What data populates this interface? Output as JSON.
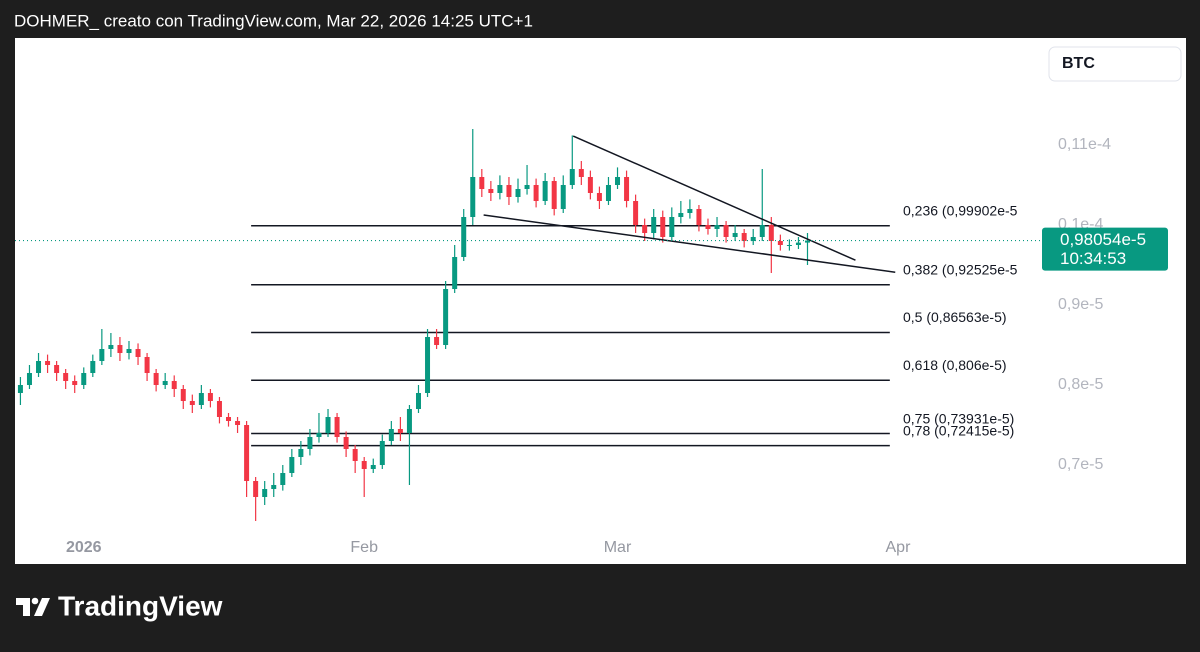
{
  "header": "DOHMER_ creato con TradingView.com, Mar 22, 2026 14:25 UTC+1",
  "footer": {
    "brand": "TradingView"
  },
  "chart_data": {
    "type": "candlestick",
    "symbol": "BTC",
    "up_color": "#089981",
    "down_color": "#f23645",
    "xlim": [
      -0.6,
      112.7
    ],
    "xticks": [
      {
        "value": 7,
        "label": "2026"
      },
      {
        "value": 38,
        "label": "Feb"
      },
      {
        "value": 66,
        "label": "Mar"
      },
      {
        "value": 97,
        "label": "Apr"
      }
    ],
    "ylim": [
      0.57875,
      1.23375
    ],
    "yticks": [
      {
        "value": 0.7,
        "label": "0,7e-5"
      },
      {
        "value": 0.8,
        "label": "0,8e-5"
      },
      {
        "value": 0.9,
        "label": "0,9e-5"
      },
      {
        "value": 1.0,
        "label": "0,1e-4"
      },
      {
        "value": 1.1,
        "label": "0,11e-4"
      }
    ],
    "open": [
      0.79,
      0.8,
      0.815,
      0.83,
      0.825,
      0.815,
      0.805,
      0.8,
      0.815,
      0.83,
      0.845,
      0.85,
      0.84,
      0.845,
      0.835,
      0.815,
      0.8,
      0.805,
      0.795,
      0.78,
      0.775,
      0.79,
      0.78,
      0.76,
      0.755,
      0.75,
      0.68,
      0.66,
      0.67,
      0.675,
      0.69,
      0.71,
      0.72,
      0.735,
      0.74,
      0.76,
      0.735,
      0.72,
      0.705,
      0.695,
      0.7,
      0.73,
      0.745,
      0.74,
      0.77,
      0.79,
      0.86,
      0.85,
      0.92,
      0.96,
      1.01,
      1.06,
      1.045,
      1.04,
      1.05,
      1.035,
      1.045,
      1.05,
      1.03,
      1.055,
      1.02,
      1.05,
      1.07,
      1.06,
      1.04,
      1.03,
      1.05,
      1.06,
      1.03,
      1.0,
      0.99,
      1.01,
      0.985,
      1.01,
      1.015,
      1.02,
      1.0,
      0.995,
      1.0,
      0.985,
      0.99,
      0.98,
      0.985,
      1.0,
      0.98,
      0.975,
      0.975,
      0.978
    ],
    "high": [
      0.81,
      0.825,
      0.84,
      0.838,
      0.83,
      0.82,
      0.812,
      0.822,
      0.838,
      0.87,
      0.865,
      0.86,
      0.855,
      0.852,
      0.84,
      0.82,
      0.815,
      0.812,
      0.8,
      0.788,
      0.8,
      0.795,
      0.785,
      0.765,
      0.76,
      0.755,
      0.685,
      0.68,
      0.69,
      0.7,
      0.72,
      0.73,
      0.745,
      0.765,
      0.77,
      0.765,
      0.742,
      0.725,
      0.71,
      0.708,
      0.738,
      0.755,
      0.76,
      0.775,
      0.8,
      0.87,
      0.87,
      0.93,
      0.975,
      1.02,
      1.12,
      1.07,
      1.055,
      1.062,
      1.06,
      1.058,
      1.075,
      1.058,
      1.065,
      1.06,
      1.062,
      1.112,
      1.08,
      1.068,
      1.048,
      1.06,
      1.072,
      1.068,
      1.038,
      1.008,
      1.02,
      1.018,
      1.022,
      1.03,
      1.032,
      1.025,
      1.008,
      1.01,
      1.005,
      1.0,
      0.995,
      0.995,
      1.07,
      1.01,
      0.988,
      0.982,
      0.985,
      0.99
    ],
    "low": [
      0.775,
      0.795,
      0.81,
      0.815,
      0.805,
      0.795,
      0.79,
      0.795,
      0.81,
      0.825,
      0.835,
      0.83,
      0.832,
      0.825,
      0.805,
      0.792,
      0.795,
      0.785,
      0.77,
      0.765,
      0.77,
      0.772,
      0.752,
      0.748,
      0.74,
      0.66,
      0.63,
      0.65,
      0.66,
      0.668,
      0.685,
      0.7,
      0.712,
      0.728,
      0.735,
      0.728,
      0.71,
      0.69,
      0.66,
      0.69,
      0.695,
      0.725,
      0.73,
      0.675,
      0.765,
      0.785,
      0.845,
      0.845,
      0.915,
      0.955,
      1.0,
      1.035,
      1.03,
      1.032,
      1.025,
      1.028,
      1.038,
      1.022,
      1.025,
      1.012,
      1.015,
      1.045,
      1.05,
      1.032,
      1.02,
      1.025,
      1.045,
      1.022,
      0.99,
      0.98,
      0.982,
      0.978,
      0.98,
      1.002,
      1.008,
      0.992,
      0.988,
      0.985,
      0.978,
      0.98,
      0.972,
      0.975,
      0.98,
      0.94,
      0.968,
      0.968,
      0.97,
      0.95
    ],
    "close": [
      0.8,
      0.815,
      0.83,
      0.825,
      0.815,
      0.805,
      0.8,
      0.815,
      0.83,
      0.845,
      0.85,
      0.84,
      0.845,
      0.835,
      0.815,
      0.8,
      0.805,
      0.795,
      0.78,
      0.775,
      0.79,
      0.78,
      0.76,
      0.755,
      0.75,
      0.68,
      0.66,
      0.67,
      0.675,
      0.69,
      0.71,
      0.72,
      0.735,
      0.74,
      0.76,
      0.735,
      0.72,
      0.705,
      0.695,
      0.7,
      0.73,
      0.745,
      0.74,
      0.77,
      0.79,
      0.86,
      0.85,
      0.92,
      0.96,
      1.01,
      1.06,
      1.045,
      1.04,
      1.05,
      1.035,
      1.045,
      1.05,
      1.03,
      1.055,
      1.02,
      1.05,
      1.07,
      1.06,
      1.04,
      1.03,
      1.05,
      1.06,
      1.03,
      1.0,
      0.99,
      1.01,
      0.985,
      1.01,
      1.015,
      1.02,
      1.0,
      0.995,
      1.0,
      0.985,
      0.99,
      0.98,
      0.985,
      1.0,
      0.98,
      0.975,
      0.975,
      0.978,
      0.98054
    ],
    "fib_x": [
      25.5,
      96.1
    ],
    "fib_levels": [
      {
        "value": 0.99902,
        "label": "0,236 (0,99902e-5"
      },
      {
        "value": 0.92525,
        "label": "0,382 (0,92525e-5"
      },
      {
        "value": 0.86563,
        "label": "0,5 (0,86563e-5)"
      },
      {
        "value": 0.806,
        "label": "0,618 (0,806e-5)"
      },
      {
        "value": 0.73931,
        "label": "0,75 (0,73931e-5)"
      },
      {
        "value": 0.72415,
        "label": "0,78 (0,72415e-5)"
      }
    ],
    "trendlines": [
      {
        "x": [
          61.1,
          92.3
        ],
        "y": [
          1.1112,
          0.956
        ]
      },
      {
        "x": [
          51.2,
          96.7
        ],
        "y": [
          1.0125,
          0.941
        ]
      }
    ],
    "last_price": {
      "value": 0.98054,
      "label": "0,98054e-5",
      "countdown": "10:34:53"
    }
  }
}
